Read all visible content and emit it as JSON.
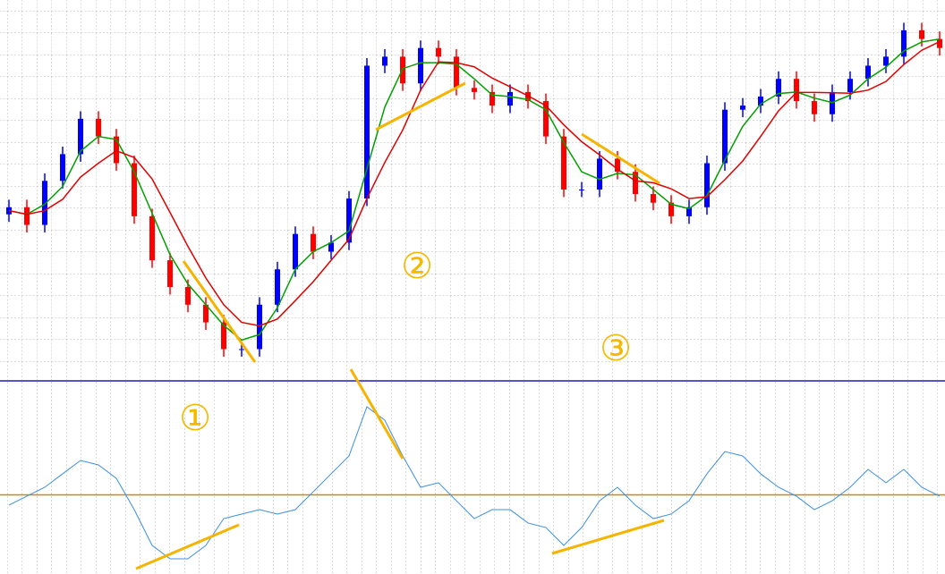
{
  "chart_data": [
    {
      "type": "candlestick",
      "open": [
        44,
        45.9,
        41.2,
        52.9,
        60,
        69.4,
        64.7,
        57.6,
        43.5,
        31.8,
        24.7,
        20,
        15.3,
        8.2,
        8.2,
        20,
        29.4,
        38.8,
        34.1,
        36.5,
        48.2,
        83.5,
        85.9,
        78.8,
        88.2,
        85.9,
        77.6,
        76.5,
        72.9,
        76.5,
        74.1,
        64.7,
        50.6,
        50.6,
        58.8,
        55.3,
        49.4,
        47.1,
        43.5,
        45.9,
        57.6,
        71.8,
        72.9,
        75.3,
        80,
        74.1,
        70.6,
        76.5,
        80,
        83.5,
        85.9,
        92.9,
        90.6
      ],
      "high": [
        47.9,
        47.9,
        54.9,
        62,
        71.4,
        71.4,
        66.7,
        59.6,
        45.5,
        33.8,
        26.7,
        22,
        17.3,
        10.2,
        22,
        31.4,
        40.8,
        40.8,
        38.5,
        50.2,
        85.5,
        87.9,
        87.9,
        90.2,
        90.2,
        87.9,
        79.6,
        78.5,
        78.5,
        78.5,
        76.1,
        66.7,
        52.6,
        60.8,
        60.8,
        57.3,
        51.4,
        49.1,
        47.9,
        59.6,
        73.8,
        74.9,
        77.3,
        82,
        82,
        76.1,
        78.5,
        82,
        85.5,
        87.9,
        94.9,
        94.9,
        92.6
      ],
      "low": [
        42,
        39.2,
        39.2,
        50.9,
        58,
        62.7,
        55.6,
        41.5,
        29.8,
        22.7,
        18,
        13.3,
        6.2,
        6.2,
        6.2,
        18,
        27.4,
        32.1,
        32.1,
        34.5,
        46.2,
        81.5,
        76.8,
        76.8,
        83.9,
        75.6,
        74.5,
        70.9,
        70.9,
        72.1,
        62.7,
        48.6,
        48.6,
        48.6,
        53.3,
        47.4,
        45.1,
        41.5,
        41.5,
        43.9,
        55.6,
        69.8,
        70.9,
        73.3,
        72.1,
        68.6,
        68.6,
        74.5,
        78,
        81.5,
        83.9,
        88.6,
        86.2
      ],
      "close": [
        45.9,
        41.2,
        52.9,
        60,
        69.4,
        64.7,
        57.6,
        43.5,
        31.8,
        24.7,
        20,
        15.3,
        8.2,
        8.2,
        20,
        29.4,
        38.8,
        34.1,
        36.5,
        48.2,
        83.5,
        85.9,
        78.8,
        88.2,
        85.9,
        77.6,
        76.5,
        72.9,
        76.5,
        74.1,
        64.7,
        50.6,
        50.6,
        58.8,
        55.3,
        49.4,
        47.1,
        43.5,
        45.9,
        57.6,
        71.8,
        72.9,
        75.3,
        80,
        74.1,
        70.6,
        76.5,
        80,
        83.5,
        85.9,
        92.9,
        90.6,
        88.2
      ],
      "up_color": "#0000ff",
      "down_color": "#ff0000",
      "series": [
        {
          "color": "#00a000",
          "values": [
            45,
            44,
            46.7,
            51.4,
            60.8,
            64.7,
            63.9,
            55.3,
            44.3,
            33.3,
            25.5,
            20,
            14.5,
            10.6,
            12.1,
            19.2,
            29.4,
            34.1,
            36.5,
            39.6,
            56.1,
            72.5,
            82.7,
            84.3,
            84.3,
            83.9,
            80,
            75.7,
            75.3,
            74.5,
            71.8,
            63.1,
            55.3,
            53.3,
            54.9,
            54.5,
            50.6,
            46.7,
            45.5,
            49,
            58.4,
            67.4,
            73.3,
            76.1,
            76.5,
            74.9,
            73.7,
            75.7,
            80,
            83.1,
            87.4,
            89.8,
            90.6
          ]
        },
        {
          "color": "#e00000",
          "values": [
            45,
            44,
            45,
            48,
            53.9,
            57.6,
            60.9,
            59.1,
            53.4,
            44.5,
            35.5,
            27.1,
            20,
            15.3,
            14.4,
            16.2,
            21.1,
            26.1,
            31.8,
            37.4,
            48.2,
            57.8,
            66.4,
            77,
            84.5,
            84.3,
            83.2,
            80.2,
            77.9,
            75.5,
            72.9,
            67.8,
            63.3,
            59.8,
            56,
            52.9,
            52.4,
            50.8,
            48.2,
            48.7,
            53.2,
            58.2,
            64.7,
            71.5,
            76.4,
            76.4,
            76.3,
            76.2,
            77,
            79.3,
            83.8,
            87.6,
            89.9
          ]
        }
      ],
      "ylim": [
        0,
        100
      ],
      "annotations": [
        "①",
        "②",
        "③"
      ]
    },
    {
      "type": "line",
      "color": "#3d8fe0",
      "values": [
        -9.1,
        -1.2,
        6.7,
        18.6,
        30.4,
        26.5,
        14.6,
        -13.1,
        -44.7,
        -56.6,
        -56.6,
        -44.7,
        -21,
        -17,
        -13.1,
        -17,
        -13.1,
        2.7,
        18.6,
        34.4,
        77.9,
        66,
        34.4,
        6.7,
        10.7,
        -5.2,
        -21,
        -13.1,
        -13.1,
        -24.9,
        -28.9,
        -44.7,
        -28.9,
        -5.2,
        6.7,
        -9.1,
        -21,
        -17,
        -5.2,
        18.6,
        38.3,
        34.4,
        18.6,
        6.7,
        -1.2,
        -13.1,
        -5.2,
        6.7,
        22.5,
        10.7,
        22.5,
        6.7,
        -1.2
      ],
      "ylim": [
        -70,
        100
      ],
      "reference_line": 0,
      "reference_color": "#d08a00"
    }
  ]
}
